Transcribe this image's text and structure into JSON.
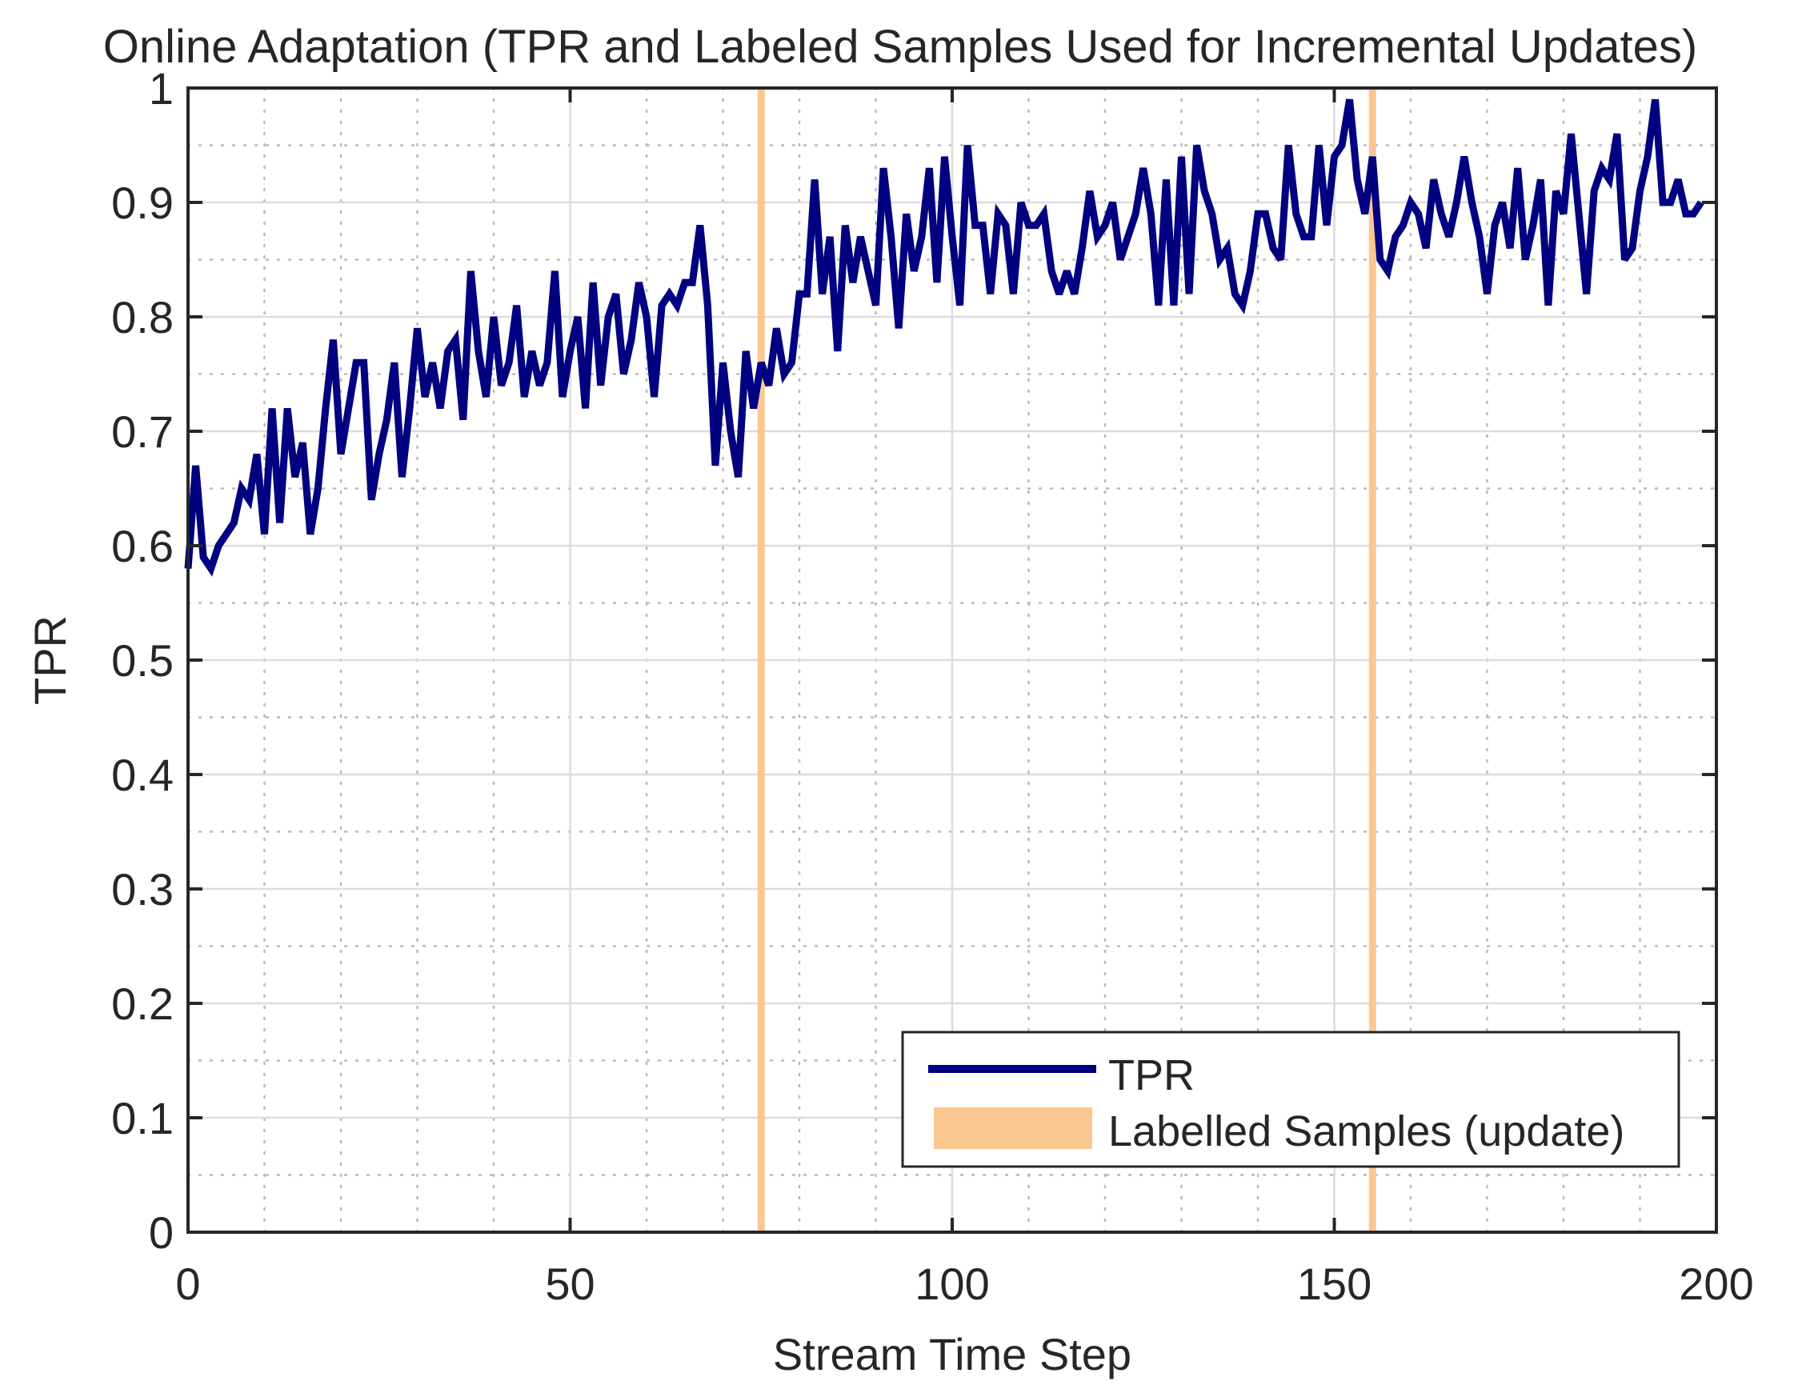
{
  "chart_data": {
    "type": "line",
    "title": "Online Adaptation (TPR and Labeled Samples Used for Incremental Updates)",
    "xlabel": "Stream Time Step",
    "ylabel": "TPR",
    "xlim": [
      0,
      200
    ],
    "ylim": [
      0,
      1
    ],
    "xticks": [
      0,
      50,
      100,
      150,
      200
    ],
    "xtick_labels": [
      "0",
      "50",
      "100",
      "150",
      "200"
    ],
    "yticks": [
      0,
      0.1,
      0.2,
      0.3,
      0.4,
      0.5,
      0.6,
      0.7,
      0.8,
      0.9,
      1
    ],
    "ytick_labels": [
      "0",
      "0.1",
      "0.2",
      "0.3",
      "0.4",
      "0.5",
      "0.6",
      "0.7",
      "0.8",
      "0.9",
      "1"
    ],
    "grid": true,
    "minor_grid": true,
    "legend_position": "bottom-right",
    "series": [
      {
        "name": "TPR",
        "color": "#000080",
        "values": [
          0.58,
          0.67,
          0.59,
          0.58,
          0.6,
          0.61,
          0.62,
          0.65,
          0.64,
          0.68,
          0.61,
          0.72,
          0.62,
          0.72,
          0.66,
          0.69,
          0.61,
          0.65,
          0.72,
          0.78,
          0.68,
          0.72,
          0.76,
          0.76,
          0.64,
          0.68,
          0.71,
          0.76,
          0.66,
          0.72,
          0.79,
          0.73,
          0.76,
          0.72,
          0.77,
          0.78,
          0.71,
          0.84,
          0.77,
          0.73,
          0.8,
          0.74,
          0.76,
          0.81,
          0.73,
          0.77,
          0.74,
          0.76,
          0.84,
          0.73,
          0.77,
          0.8,
          0.72,
          0.83,
          0.74,
          0.8,
          0.82,
          0.75,
          0.78,
          0.83,
          0.8,
          0.73,
          0.81,
          0.82,
          0.81,
          0.83,
          0.83,
          0.88,
          0.81,
          0.67,
          0.76,
          0.7,
          0.66,
          0.77,
          0.72,
          0.76,
          0.74,
          0.79,
          0.75,
          0.76,
          0.82,
          0.82,
          0.92,
          0.82,
          0.87,
          0.77,
          0.88,
          0.83,
          0.87,
          0.84,
          0.81,
          0.93,
          0.87,
          0.79,
          0.89,
          0.84,
          0.87,
          0.93,
          0.83,
          0.94,
          0.87,
          0.81,
          0.95,
          0.88,
          0.88,
          0.82,
          0.89,
          0.88,
          0.82,
          0.9,
          0.88,
          0.88,
          0.89,
          0.84,
          0.82,
          0.84,
          0.82,
          0.86,
          0.91,
          0.87,
          0.88,
          0.9,
          0.85,
          0.87,
          0.89,
          0.93,
          0.89,
          0.81,
          0.92,
          0.81,
          0.94,
          0.82,
          0.95,
          0.91,
          0.89,
          0.85,
          0.86,
          0.82,
          0.81,
          0.84,
          0.89,
          0.89,
          0.86,
          0.85,
          0.95,
          0.89,
          0.87,
          0.87,
          0.95,
          0.88,
          0.94,
          0.95,
          0.99,
          0.92,
          0.89,
          0.94,
          0.85,
          0.84,
          0.87,
          0.88,
          0.9,
          0.89,
          0.86,
          0.92,
          0.89,
          0.87,
          0.9,
          0.94,
          0.9,
          0.87,
          0.82,
          0.88,
          0.9,
          0.86,
          0.93,
          0.85,
          0.88,
          0.92,
          0.81,
          0.91,
          0.89,
          0.96,
          0.89,
          0.82,
          0.91,
          0.93,
          0.92,
          0.96,
          0.85,
          0.86,
          0.91,
          0.94,
          0.99,
          0.9,
          0.9,
          0.92,
          0.89,
          0.89,
          0.9
        ]
      }
    ],
    "update_markers": {
      "name": "Labelled Samples (update)",
      "color": "#FBC791",
      "x": [
        75,
        155
      ]
    },
    "legend": [
      {
        "label": "TPR",
        "kind": "line",
        "color": "#000080"
      },
      {
        "label": "Labelled Samples (update)",
        "kind": "band",
        "color": "#FBC791"
      }
    ]
  }
}
